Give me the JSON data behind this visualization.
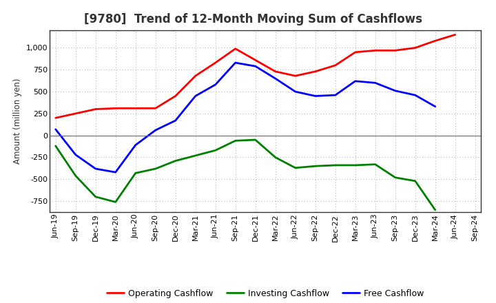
{
  "title": "[9780]  Trend of 12-Month Moving Sum of Cashflows",
  "ylabel": "Amount (million yen)",
  "x_labels": [
    "Jun-19",
    "Sep-19",
    "Dec-19",
    "Mar-20",
    "Jun-20",
    "Sep-20",
    "Dec-20",
    "Mar-21",
    "Jun-21",
    "Sep-21",
    "Dec-21",
    "Mar-22",
    "Jun-22",
    "Sep-22",
    "Dec-22",
    "Mar-23",
    "Jun-23",
    "Sep-23",
    "Dec-23",
    "Mar-24",
    "Jun-24",
    "Sep-24"
  ],
  "operating": [
    200,
    250,
    300,
    310,
    310,
    310,
    450,
    680,
    830,
    990,
    860,
    730,
    680,
    730,
    800,
    950,
    970,
    970,
    1000,
    1080,
    1150,
    null
  ],
  "investing": [
    -120,
    -460,
    -700,
    -760,
    -430,
    -380,
    -290,
    -230,
    -170,
    -60,
    -50,
    -250,
    -370,
    -350,
    -340,
    -340,
    -330,
    -480,
    -520,
    -850,
    null,
    null
  ],
  "free": [
    70,
    -220,
    -380,
    -420,
    -110,
    60,
    170,
    450,
    580,
    830,
    790,
    650,
    500,
    450,
    460,
    620,
    600,
    510,
    460,
    330,
    null,
    null
  ],
  "operating_color": "#FF0000",
  "investing_color": "#008000",
  "free_color": "#0000FF",
  "bg_color": "#FFFFFF",
  "plot_bg_color": "#FFFFFF",
  "ylim": [
    -875,
    1200
  ],
  "yticks": [
    -750,
    -500,
    -250,
    0,
    250,
    500,
    750,
    1000
  ],
  "legend_labels": [
    "Operating Cashflow",
    "Investing Cashflow",
    "Free Cashflow"
  ],
  "title_color": "#333333",
  "title_fontsize": 12,
  "axis_fontsize": 8,
  "ylabel_fontsize": 8.5,
  "legend_fontsize": 9,
  "linewidth": 2.0
}
